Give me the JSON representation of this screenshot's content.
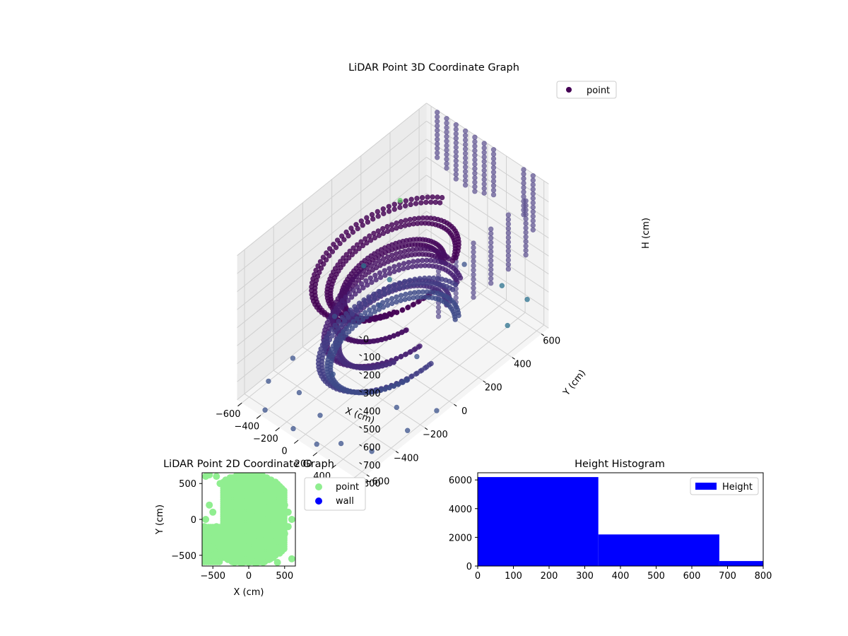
{
  "chart_data": [
    {
      "type": "scatter",
      "projection": "3d",
      "title": "LiDAR Point 3D Coordinate Graph",
      "xlabel": "X (cm)",
      "ylabel": "Y (cm)",
      "zlabel": "H (cm)",
      "xlim": [
        -650,
        650
      ],
      "ylim": [
        -650,
        650
      ],
      "zlim": [
        800,
        0
      ],
      "xticks": [
        "−600",
        "−400",
        "−200",
        "0",
        "200",
        "400",
        "600"
      ],
      "yticks": [
        "−600",
        "−400",
        "−200",
        "0",
        "200",
        "400",
        "600"
      ],
      "zticks": [
        "0",
        "100",
        "200",
        "300",
        "400",
        "500",
        "600",
        "700",
        "800"
      ],
      "colormap": "viridis",
      "grid": true,
      "legend": {
        "position": "top-right",
        "entries": [
          {
            "label": "point",
            "color": "#440154"
          }
        ]
      },
      "series": [
        {
          "name": "point",
          "rings": [
            {
              "h": 220,
              "r": 470,
              "a0": 110,
              "a1": 360,
              "color": "#440154"
            },
            {
              "h": 270,
              "r": 380,
              "a0": 40,
              "a1": 330,
              "color": "#450457"
            },
            {
              "h": 330,
              "r": 300,
              "a0": 60,
              "a1": 320,
              "color": "#46085c"
            },
            {
              "h": 420,
              "r": 350,
              "a0": 80,
              "a1": 340,
              "color": "#471063"
            },
            {
              "h": 520,
              "r": 400,
              "a0": 70,
              "a1": 350,
              "color": "#482173"
            },
            {
              "h": 580,
              "r": 330,
              "a0": 60,
              "a1": 330,
              "color": "#472d7b"
            },
            {
              "h": 640,
              "r": 430,
              "a0": 90,
              "a1": 360,
              "color": "#433e85"
            },
            {
              "h": 680,
              "r": 380,
              "a0": 60,
              "a1": 340,
              "color": "#3e4a89"
            }
          ],
          "walls": [
            {
              "x": -520,
              "y": 640,
              "h0": 0,
              "h1": 250
            },
            {
              "x": -420,
              "y": 640,
              "h0": 0,
              "h1": 280
            },
            {
              "x": -320,
              "y": 640,
              "h0": 0,
              "h1": 300
            },
            {
              "x": -220,
              "y": 640,
              "h0": 0,
              "h1": 320
            },
            {
              "x": -120,
              "y": 640,
              "h0": 0,
              "h1": 300
            },
            {
              "x": -20,
              "y": 640,
              "h0": 0,
              "h1": 280
            },
            {
              "x": 80,
              "y": 640,
              "h0": 0,
              "h1": 260
            },
            {
              "x": 400,
              "y": 640,
              "h0": 0,
              "h1": 260
            },
            {
              "x": 500,
              "y": 640,
              "h0": 0,
              "h1": 300
            },
            {
              "x": 640,
              "y": 500,
              "h0": 0,
              "h1": 320
            },
            {
              "x": 640,
              "y": 380,
              "h0": 0,
              "h1": 320
            },
            {
              "x": 640,
              "y": 260,
              "h0": 0,
              "h1": 300
            },
            {
              "x": 640,
              "y": 140,
              "h0": 0,
              "h1": 300
            },
            {
              "x": 640,
              "y": 20,
              "h0": 0,
              "h1": 280
            },
            {
              "x": 640,
              "y": -100,
              "h0": 0,
              "h1": 260
            }
          ],
          "scatter": [
            [
              -600,
              -300,
              780
            ],
            [
              -550,
              -500,
              760
            ],
            [
              -400,
              -620,
              790
            ],
            [
              -300,
              -450,
              770
            ],
            [
              -100,
              -620,
              790
            ],
            [
              0,
              -500,
              760
            ],
            [
              150,
              -620,
              790
            ],
            [
              300,
              -550,
              780
            ],
            [
              450,
              -620,
              790
            ],
            [
              550,
              -500,
              770
            ],
            [
              620,
              -300,
              760
            ],
            [
              620,
              -100,
              780
            ],
            [
              -620,
              0,
              750
            ],
            [
              -620,
              200,
              600
            ],
            [
              -500,
              300,
              700
            ],
            [
              600,
              400,
              640
            ],
            [
              500,
              600,
              660
            ],
            [
              200,
              620,
              700
            ],
            [
              -200,
              620,
              720
            ],
            [
              -620,
              450,
              400
            ],
            [
              -450,
              200,
              760
            ],
            [
              350,
              -200,
              790
            ],
            [
              -250,
              -250,
              780
            ],
            [
              100,
              100,
              790
            ]
          ]
        }
      ]
    },
    {
      "type": "scatter",
      "title": "LiDAR Point 2D Coordinate Graph",
      "xlabel": "X (cm)",
      "ylabel": "Y (cm)",
      "xlim": [
        -650,
        650
      ],
      "ylim": [
        -650,
        650
      ],
      "xticks": [
        "−500",
        "0",
        "500"
      ],
      "yticks": [
        "−500",
        "0",
        "500"
      ],
      "legend": {
        "position": "outside-right",
        "entries": [
          {
            "label": "point",
            "color": "#90ee90"
          },
          {
            "label": "wall",
            "color": "#0000ff"
          }
        ]
      },
      "series": [
        {
          "name": "point",
          "color": "#90ee90",
          "points": [
            [
              -600,
              600
            ],
            [
              -550,
              620
            ],
            [
              -450,
              600
            ],
            [
              -400,
              500
            ],
            [
              -300,
              450
            ],
            [
              -200,
              500
            ],
            [
              -100,
              600
            ],
            [
              0,
              620
            ],
            [
              100,
              600
            ],
            [
              200,
              550
            ],
            [
              300,
              500
            ],
            [
              400,
              400
            ],
            [
              450,
              300
            ],
            [
              500,
              200
            ],
            [
              550,
              100
            ],
            [
              600,
              0
            ],
            [
              550,
              -100
            ],
            [
              500,
              -200
            ],
            [
              450,
              -300
            ],
            [
              400,
              -400
            ],
            [
              350,
              -500
            ],
            [
              300,
              -550
            ],
            [
              200,
              -600
            ],
            [
              100,
              -620
            ],
            [
              0,
              -600
            ],
            [
              -100,
              -620
            ],
            [
              -200,
              -600
            ],
            [
              -300,
              -550
            ],
            [
              -400,
              -500
            ],
            [
              -500,
              -400
            ],
            [
              -550,
              -300
            ],
            [
              -600,
              -200
            ],
            [
              -620,
              -100
            ],
            [
              -600,
              0
            ],
            [
              -500,
              100
            ],
            [
              -550,
              200
            ],
            [
              -450,
              -100
            ],
            [
              -350,
              -200
            ],
            [
              -250,
              -350
            ],
            [
              -150,
              -450
            ],
            [
              0,
              300
            ],
            [
              50,
              150
            ],
            [
              100,
              0
            ],
            [
              0,
              -100
            ],
            [
              -50,
              -250
            ],
            [
              200,
              200
            ],
            [
              250,
              0
            ],
            [
              150,
              -250
            ],
            [
              300,
              -300
            ],
            [
              -100,
              -350
            ],
            [
              350,
              150
            ],
            [
              -250,
              100
            ],
            [
              600,
              -550
            ],
            [
              400,
              -600
            ]
          ]
        },
        {
          "name": "wall",
          "color": "#0000ff",
          "points": []
        }
      ]
    },
    {
      "type": "bar",
      "title": "Height Histogram",
      "xlabel": "",
      "ylabel": "",
      "xlim": [
        0,
        800
      ],
      "ylim": [
        0,
        6500
      ],
      "xticks": [
        "0",
        "100",
        "200",
        "300",
        "400",
        "500",
        "600",
        "700",
        "800"
      ],
      "yticks": [
        "0",
        "2000",
        "4000",
        "6000"
      ],
      "legend": {
        "position": "top-right",
        "entries": [
          {
            "label": "Height",
            "color": "#0000ff"
          }
        ]
      },
      "series": [
        {
          "name": "Height",
          "color": "#0000ff",
          "bins": [
            {
              "x0": 0,
              "x1": 338,
              "count": 6200
            },
            {
              "x0": 338,
              "x1": 677,
              "count": 2200
            },
            {
              "x0": 677,
              "x1": 800,
              "count": 350
            }
          ]
        }
      ]
    }
  ]
}
